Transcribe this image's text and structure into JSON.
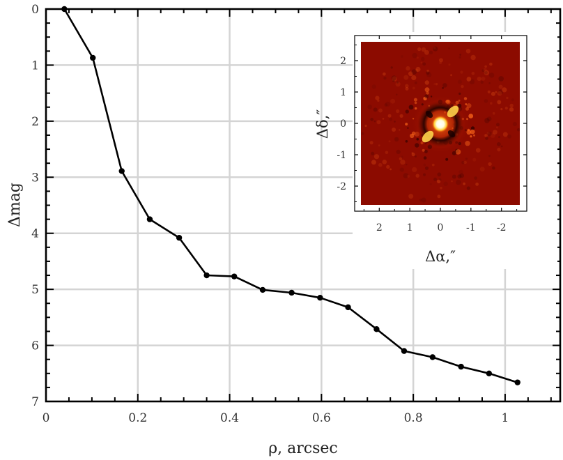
{
  "chart_data": [
    {
      "type": "line",
      "title": "",
      "xlabel": "ρ, arcsec",
      "ylabel": "Δmag",
      "xlim": [
        0,
        1.12
      ],
      "ylim": [
        7,
        0
      ],
      "y_inverted": true,
      "grid": true,
      "xticks": [
        "0",
        "0.2",
        "0.4",
        "0.6",
        "0.8",
        "1"
      ],
      "yticks": [
        "0",
        "1",
        "2",
        "3",
        "4",
        "5",
        "6",
        "7"
      ],
      "marker": "filled-circle",
      "line_color": "#000000",
      "series": [
        {
          "x": [
            0.04,
            0.102,
            0.165,
            0.226,
            0.29,
            0.35,
            0.41,
            0.472,
            0.535,
            0.597,
            0.658,
            0.72,
            0.78,
            0.842,
            0.904,
            0.965,
            1.027
          ],
          "y": [
            0.0,
            0.87,
            2.89,
            3.75,
            4.08,
            4.75,
            4.77,
            5.01,
            5.06,
            5.15,
            5.32,
            5.71,
            6.1,
            6.21,
            6.38,
            6.5,
            6.66
          ]
        }
      ]
    },
    {
      "type": "heatmap",
      "title": "",
      "xlabel": "Δα,″",
      "ylabel": "Δδ,″",
      "xlim": [
        2.6,
        -2.6
      ],
      "ylim": [
        -2.6,
        2.6
      ],
      "x_inverted": true,
      "xticks": [
        "2",
        "1",
        "0",
        "-1",
        "-2"
      ],
      "yticks": [
        "2",
        "1",
        "0",
        "-1",
        "-2"
      ],
      "colormap": "hot",
      "background_color": "#8c0b00"
    }
  ]
}
